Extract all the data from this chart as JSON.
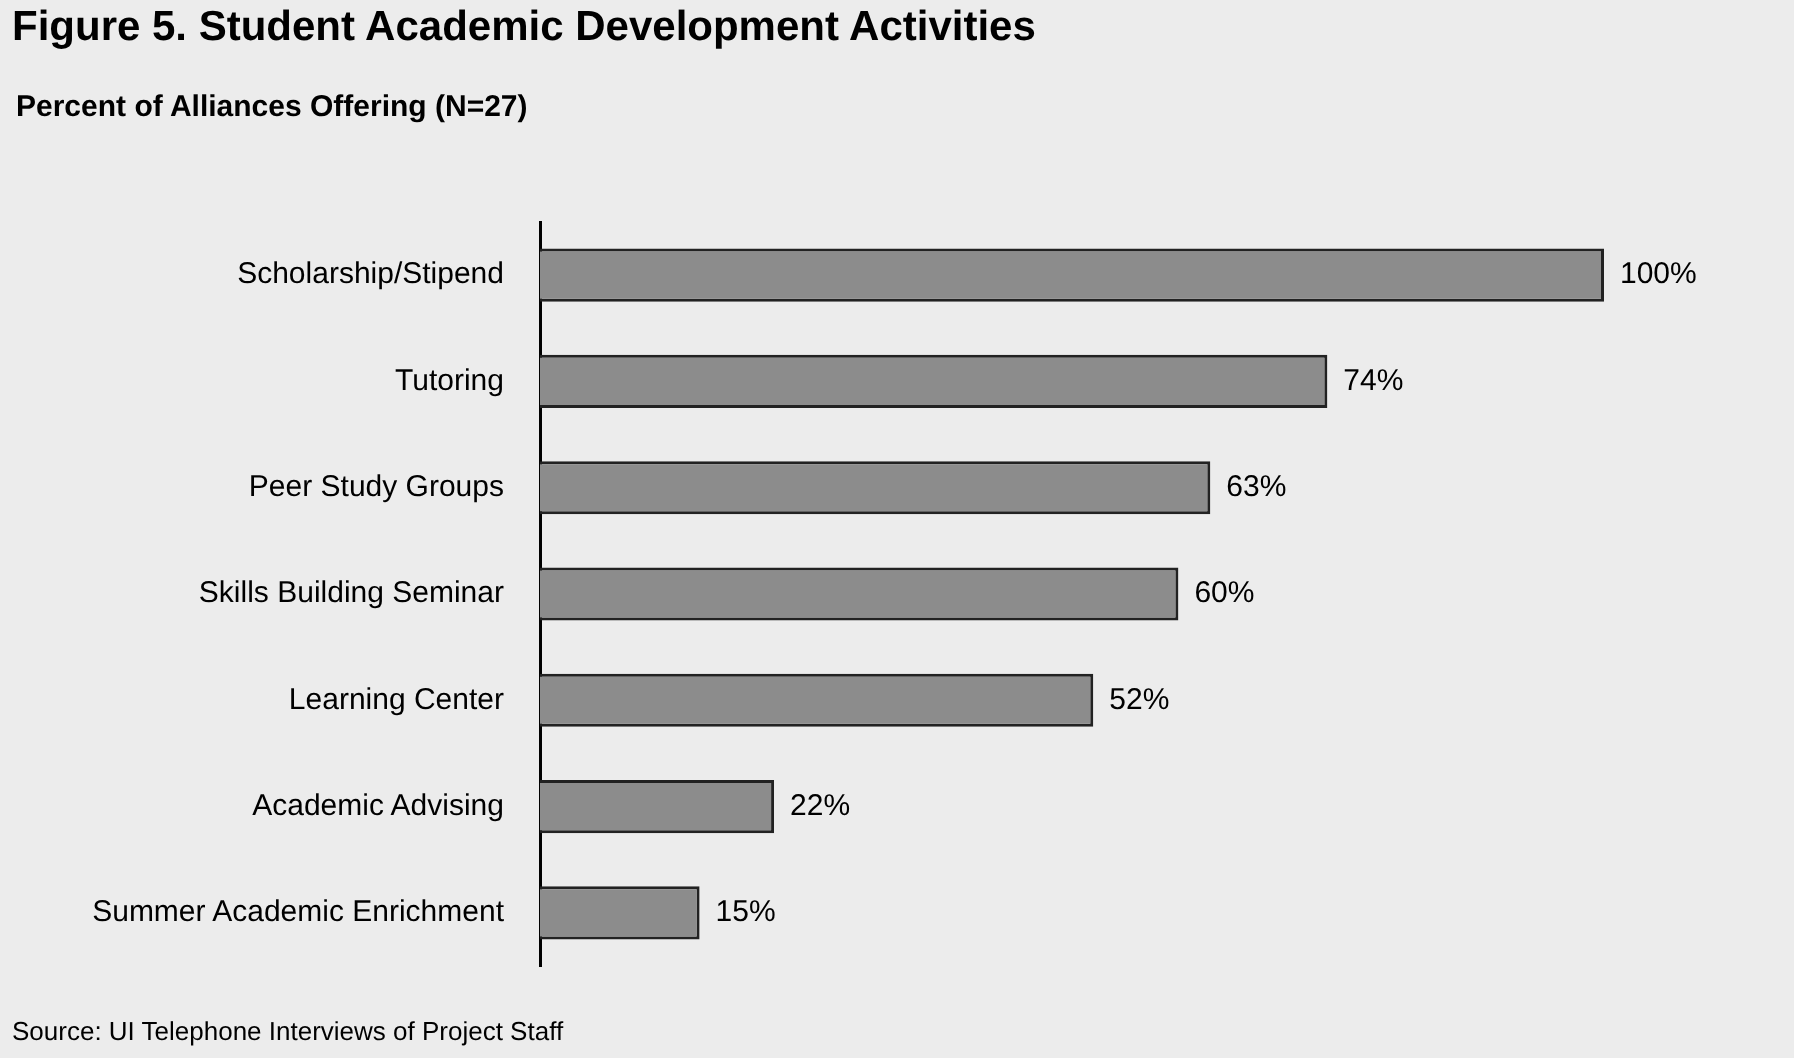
{
  "chart_data": {
    "type": "bar",
    "orientation": "horizontal",
    "title": "Figure 5. Student Academic Development Activities",
    "subtitle": "Percent of Alliances Offering (N=27)",
    "categories": [
      "Scholarship/Stipend",
      "Tutoring",
      "Peer Study Groups",
      "Skills Building Seminar",
      "Learning Center",
      "Academic Advising",
      "Summer Academic Enrichment"
    ],
    "values": [
      100,
      74,
      63,
      60,
      52,
      22,
      15
    ],
    "value_labels": [
      "100%",
      "74%",
      "63%",
      "60%",
      "52%",
      "22%",
      "15%"
    ],
    "color": "#8c8c8c",
    "annotations": [
      "Source: UI Telephone Interviews of Project Staff"
    ]
  }
}
